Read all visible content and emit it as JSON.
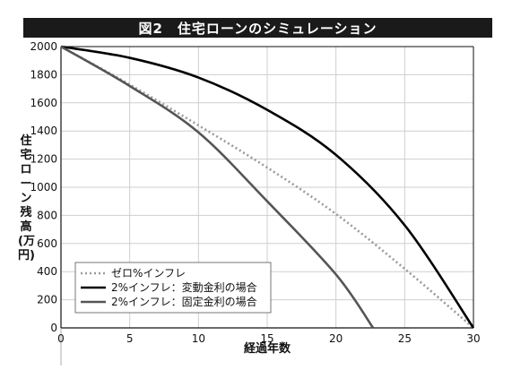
{
  "colors": {
    "title_bg": "#1a1a1a",
    "fixed_rate_line": "#555555",
    "variable_rate_line": "#000000",
    "zero_inflation_line": "#9a9a9a"
  },
  "chart_data": {
    "type": "line",
    "title": "図2　住宅ローンのシミュレーション",
    "xlabel": "経過年数",
    "ylabel": "住宅ローン残高(万円)",
    "xlim": [
      0,
      30
    ],
    "ylim": [
      0,
      2000
    ],
    "xticks": [
      0,
      5,
      10,
      15,
      20,
      25,
      30
    ],
    "yticks": [
      0,
      200,
      400,
      600,
      800,
      1000,
      1200,
      1400,
      1600,
      1800,
      2000
    ],
    "grid": true,
    "legend_position": "bottom-left",
    "series": [
      {
        "name": "ゼロ%インフレ",
        "style": "dotted",
        "x": [
          0,
          5,
          10,
          15,
          20,
          25,
          30
        ],
        "y": [
          2000,
          1730,
          1440,
          1140,
          810,
          420,
          0
        ]
      },
      {
        "name": "2%インフレ：変動金利の場合",
        "style": "solid-black",
        "x": [
          0,
          5,
          10,
          15,
          20,
          25,
          30
        ],
        "y": [
          2000,
          1920,
          1780,
          1550,
          1230,
          730,
          0
        ]
      },
      {
        "name": "2%インフレ：固定金利の場合",
        "style": "solid-gray",
        "x": [
          0,
          5,
          10,
          15,
          20,
          22.7
        ],
        "y": [
          2000,
          1720,
          1390,
          900,
          380,
          0
        ]
      }
    ]
  }
}
